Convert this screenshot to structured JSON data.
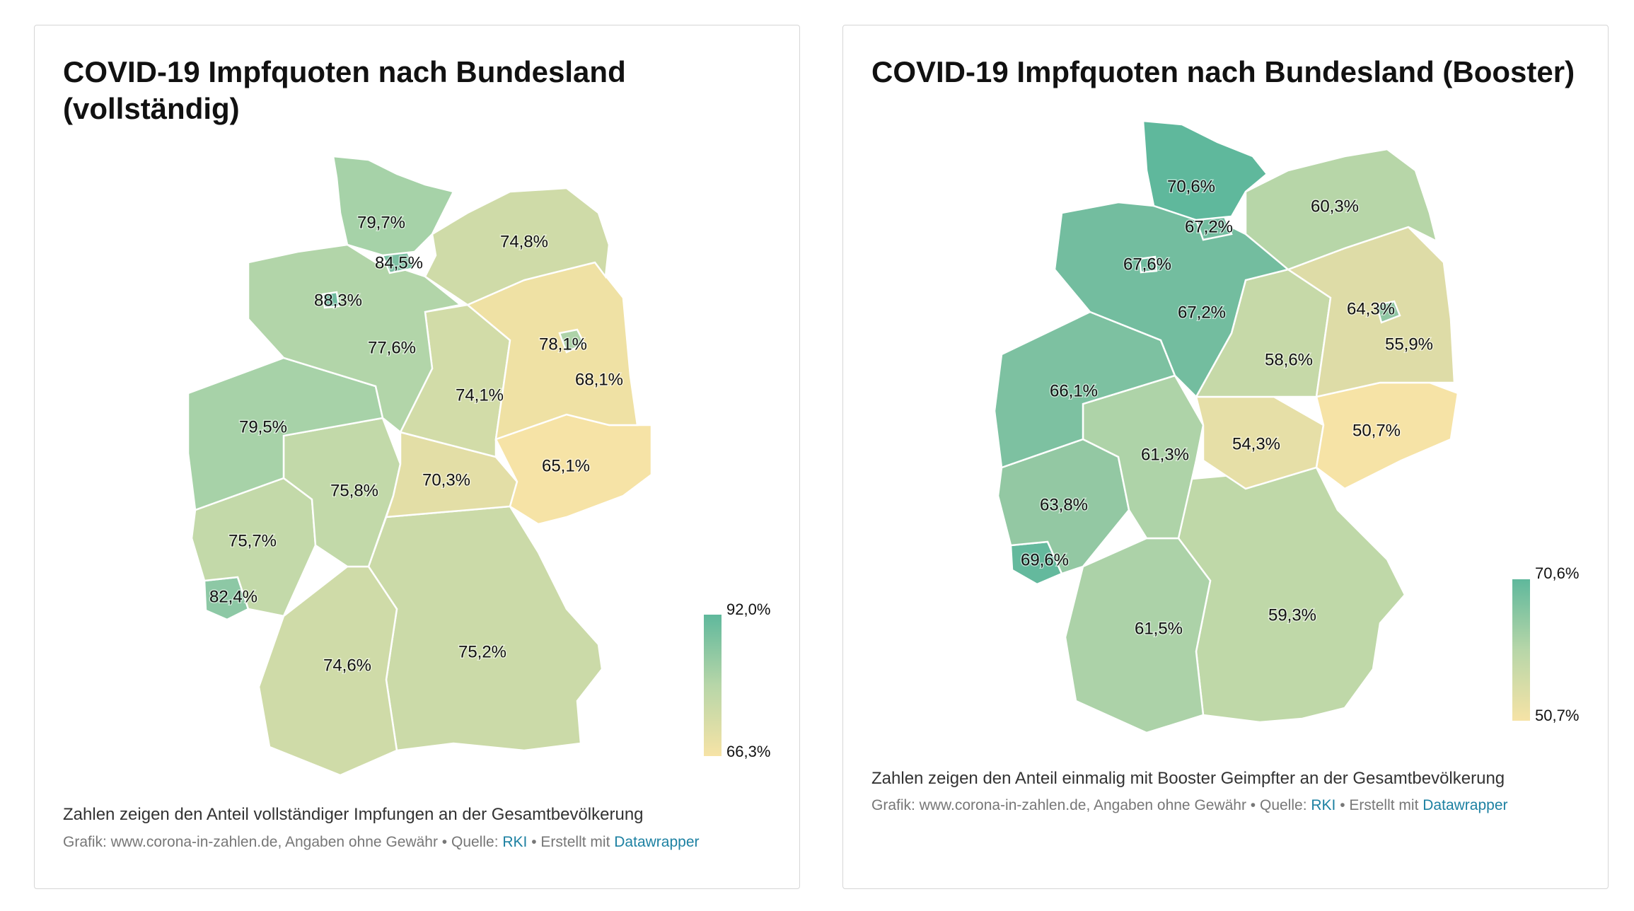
{
  "maps": [
    {
      "title": "COVID-19 Impfquoten nach Bundesland (vollständig)",
      "metric": "vollständig",
      "legend": {
        "max": "92,0%",
        "min": "66,3%",
        "color_max": "#5fb89c",
        "color_min": "#f6e3a6"
      },
      "regions": [
        {
          "name": "Schleswig-Holstein",
          "value": "79,7%",
          "color": "#a6d2a8"
        },
        {
          "name": "Hamburg",
          "value": "84,5%",
          "color": "#7cc0a3"
        },
        {
          "name": "Mecklenburg-Vorpommern",
          "value": "74,8%",
          "color": "#cfdba8"
        },
        {
          "name": "Bremen",
          "value": "88,3%",
          "color": "#6fbb9f"
        },
        {
          "name": "Niedersachsen",
          "value": "77,6%",
          "color": "#b2d5a9"
        },
        {
          "name": "Berlin",
          "value": "78,1%",
          "color": "#aed3a9"
        },
        {
          "name": "Brandenburg",
          "value": "68,1%",
          "color": "#efe1a4"
        },
        {
          "name": "Sachsen-Anhalt",
          "value": "74,1%",
          "color": "#d2dca8"
        },
        {
          "name": "Nordrhein-Westfalen",
          "value": "79,5%",
          "color": "#a7d2a8"
        },
        {
          "name": "Sachsen",
          "value": "65,1%",
          "color": "#f6e3a6"
        },
        {
          "name": "Thüringen",
          "value": "70,3%",
          "color": "#e3dea6"
        },
        {
          "name": "Hessen",
          "value": "75,8%",
          "color": "#c2d9a9"
        },
        {
          "name": "Rheinland-Pfalz",
          "value": "75,7%",
          "color": "#c3d9a9"
        },
        {
          "name": "Saarland",
          "value": "82,4%",
          "color": "#8dc8a5"
        },
        {
          "name": "Baden-Württemberg",
          "value": "74,6%",
          "color": "#cfdba8"
        },
        {
          "name": "Bayern",
          "value": "75,2%",
          "color": "#cbdaa8"
        }
      ],
      "description": "Zahlen zeigen den Anteil vollständiger Impfungen an der Gesamtbevölkerung",
      "footer": {
        "prefix": "Grafik: www.corona-in-zahlen.de, Angaben ohne Gewähr • Quelle: ",
        "source": "RKI",
        "middle": " • Erstellt mit ",
        "tool": "Datawrapper"
      }
    },
    {
      "title": "COVID-19 Impfquoten nach Bundesland (Booster)",
      "metric": "Booster",
      "legend": {
        "max": "70,6%",
        "min": "50,7%",
        "color_max": "#5fb89c",
        "color_min": "#f6e3a6"
      },
      "regions": [
        {
          "name": "Schleswig-Holstein",
          "value": "70,6%",
          "color": "#5fb89c"
        },
        {
          "name": "Hamburg",
          "value": "67,2%",
          "color": "#73bd9f"
        },
        {
          "name": "Mecklenburg-Vorpommern",
          "value": "60,3%",
          "color": "#b7d6a8"
        },
        {
          "name": "Bremen",
          "value": "67,6%",
          "color": "#70bc9f"
        },
        {
          "name": "Niedersachsen",
          "value": "67,2%",
          "color": "#73bd9f"
        },
        {
          "name": "Berlin",
          "value": "64,3%",
          "color": "#8fc6a3"
        },
        {
          "name": "Brandenburg",
          "value": "55,9%",
          "color": "#dedca7"
        },
        {
          "name": "Sachsen-Anhalt",
          "value": "58,6%",
          "color": "#c6d9a8"
        },
        {
          "name": "Nordrhein-Westfalen",
          "value": "66,1%",
          "color": "#7dc1a1"
        },
        {
          "name": "Sachsen",
          "value": "50,7%",
          "color": "#f6e3a6"
        },
        {
          "name": "Thüringen",
          "value": "54,3%",
          "color": "#e6dfa7"
        },
        {
          "name": "Hessen",
          "value": "61,3%",
          "color": "#aed3a8"
        },
        {
          "name": "Rheinland-Pfalz",
          "value": "63,8%",
          "color": "#93c8a3"
        },
        {
          "name": "Saarland",
          "value": "69,6%",
          "color": "#64b99d"
        },
        {
          "name": "Baden-Württemberg",
          "value": "61,5%",
          "color": "#acd2a8"
        },
        {
          "name": "Bayern",
          "value": "59,3%",
          "color": "#bfd8a8"
        }
      ],
      "description": "Zahlen zeigen den Anteil einmalig mit Booster Geimpfter an der Gesamtbevölkerung",
      "footer": {
        "prefix": "Grafik: www.corona-in-zahlen.de, Angaben ohne Gewähr • Quelle: ",
        "source": "RKI",
        "middle": " • Erstellt mit ",
        "tool": "Datawrapper"
      }
    }
  ]
}
